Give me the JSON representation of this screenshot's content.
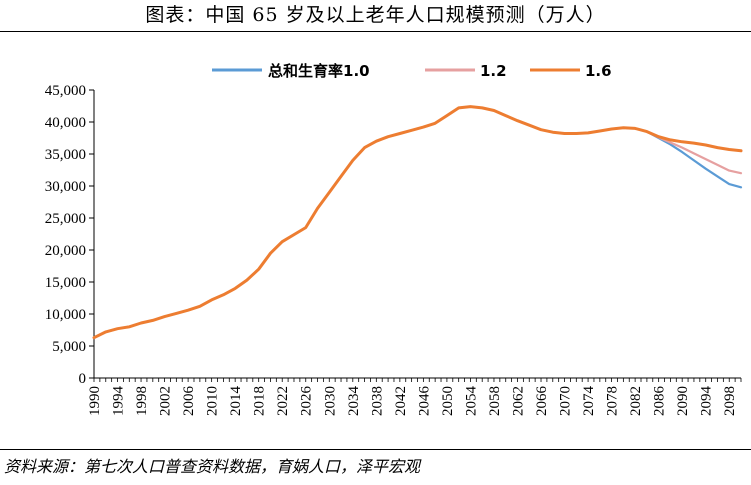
{
  "title": "图表：中国 65 岁及以上老年人口规模预测（万人）",
  "source": "资料来源：第七次人口普查资料数据，育娲人口，泽平宏观",
  "chart_data": {
    "type": "line",
    "title": "图表：中国 65 岁及以上老年人口规模预测（万人）",
    "xlabel": "",
    "ylabel": "",
    "xlim": [
      1990,
      2100
    ],
    "ylim": [
      0,
      45000
    ],
    "yticks": [
      0,
      5000,
      10000,
      15000,
      20000,
      25000,
      30000,
      35000,
      40000,
      45000
    ],
    "ytick_labels": [
      "0",
      "5,000",
      "10,000",
      "15,000",
      "20,000",
      "25,000",
      "30,000",
      "35,000",
      "40,000",
      "45,000"
    ],
    "xtick_labels": [
      "1990",
      "1994",
      "1998",
      "2002",
      "2006",
      "2010",
      "2014",
      "2018",
      "2022",
      "2026",
      "2030",
      "2034",
      "2038",
      "2042",
      "2046",
      "2050",
      "2054",
      "2058",
      "2062",
      "2066",
      "2070",
      "2074",
      "2078",
      "2082",
      "2086",
      "2090",
      "2094",
      "2098"
    ],
    "grid": false,
    "legend_position": "top-right",
    "colors": {
      "s1": "#5B9BD5",
      "s2": "#E6A0A0",
      "s3": "#ED7D31"
    },
    "series": [
      {
        "name": "总和生育率1.0",
        "x": [
          1990,
          1992,
          1994,
          1996,
          1998,
          2000,
          2002,
          2004,
          2006,
          2008,
          2010,
          2012,
          2014,
          2016,
          2018,
          2020,
          2022,
          2024,
          2026,
          2028,
          2030,
          2032,
          2034,
          2036,
          2038,
          2040,
          2042,
          2044,
          2046,
          2048,
          2050,
          2052,
          2054,
          2056,
          2058,
          2060,
          2062,
          2064,
          2066,
          2068,
          2070,
          2072,
          2074,
          2076,
          2078,
          2080,
          2082,
          2084,
          2086,
          2088,
          2090,
          2092,
          2094,
          2096,
          2098,
          2100
        ],
        "values": [
          6300,
          7200,
          7700,
          8000,
          8600,
          9000,
          9600,
          10100,
          10600,
          11200,
          12200,
          13000,
          14000,
          15300,
          17000,
          19500,
          21300,
          22400,
          23500,
          26500,
          29000,
          31500,
          34000,
          36000,
          37000,
          37700,
          38200,
          38700,
          39200,
          39800,
          41000,
          42200,
          42400,
          42200,
          41800,
          41000,
          40200,
          39500,
          38800,
          38400,
          38200,
          38200,
          38300,
          38600,
          38900,
          39100,
          39000,
          38500,
          37500,
          36500,
          35300,
          34000,
          32700,
          31500,
          30300,
          29800
        ]
      },
      {
        "name": "1.2",
        "x": [
          1990,
          1992,
          1994,
          1996,
          1998,
          2000,
          2002,
          2004,
          2006,
          2008,
          2010,
          2012,
          2014,
          2016,
          2018,
          2020,
          2022,
          2024,
          2026,
          2028,
          2030,
          2032,
          2034,
          2036,
          2038,
          2040,
          2042,
          2044,
          2046,
          2048,
          2050,
          2052,
          2054,
          2056,
          2058,
          2060,
          2062,
          2064,
          2066,
          2068,
          2070,
          2072,
          2074,
          2076,
          2078,
          2080,
          2082,
          2084,
          2086,
          2088,
          2090,
          2092,
          2094,
          2096,
          2098,
          2100
        ],
        "values": [
          6300,
          7200,
          7700,
          8000,
          8600,
          9000,
          9600,
          10100,
          10600,
          11200,
          12200,
          13000,
          14000,
          15300,
          17000,
          19500,
          21300,
          22400,
          23500,
          26500,
          29000,
          31500,
          34000,
          36000,
          37000,
          37700,
          38200,
          38700,
          39200,
          39800,
          41000,
          42200,
          42400,
          42200,
          41800,
          41000,
          40200,
          39500,
          38800,
          38400,
          38200,
          38200,
          38300,
          38600,
          38900,
          39100,
          39000,
          38500,
          37600,
          36800,
          36000,
          35100,
          34200,
          33300,
          32400,
          32000
        ]
      },
      {
        "name": "1.6",
        "x": [
          1990,
          1992,
          1994,
          1996,
          1998,
          2000,
          2002,
          2004,
          2006,
          2008,
          2010,
          2012,
          2014,
          2016,
          2018,
          2020,
          2022,
          2024,
          2026,
          2028,
          2030,
          2032,
          2034,
          2036,
          2038,
          2040,
          2042,
          2044,
          2046,
          2048,
          2050,
          2052,
          2054,
          2056,
          2058,
          2060,
          2062,
          2064,
          2066,
          2068,
          2070,
          2072,
          2074,
          2076,
          2078,
          2080,
          2082,
          2084,
          2086,
          2088,
          2090,
          2092,
          2094,
          2096,
          2098,
          2100
        ],
        "values": [
          6300,
          7200,
          7700,
          8000,
          8600,
          9000,
          9600,
          10100,
          10600,
          11200,
          12200,
          13000,
          14000,
          15300,
          17000,
          19500,
          21300,
          22400,
          23500,
          26500,
          29000,
          31500,
          34000,
          36000,
          37000,
          37700,
          38200,
          38700,
          39200,
          39800,
          41000,
          42200,
          42400,
          42200,
          41800,
          41000,
          40200,
          39500,
          38800,
          38400,
          38200,
          38200,
          38300,
          38600,
          38900,
          39100,
          39000,
          38500,
          37700,
          37200,
          36900,
          36700,
          36400,
          36000,
          35700,
          35500
        ]
      }
    ]
  }
}
